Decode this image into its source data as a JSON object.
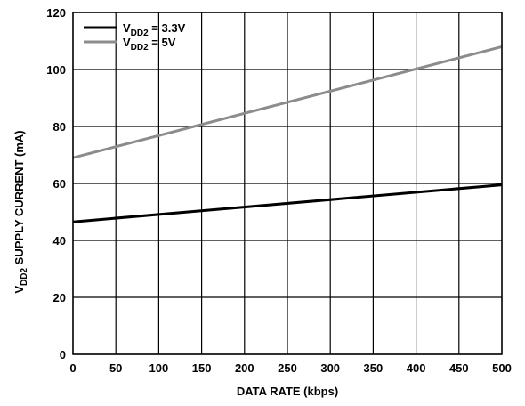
{
  "chart_data": {
    "type": "line",
    "xlabel": "DATA RATE (kbps)",
    "ylabel": {
      "pre": "V",
      "sub": "DD2",
      "post": " SUPPLY CURRENT (mA)"
    },
    "xlim": [
      0,
      500
    ],
    "ylim": [
      0,
      120
    ],
    "xticks": [
      "0",
      "50",
      "100",
      "150",
      "200",
      "250",
      "300",
      "350",
      "400",
      "450",
      "500"
    ],
    "yticks": [
      "0",
      "20",
      "40",
      "60",
      "80",
      "100",
      "120"
    ],
    "grid": true,
    "legend_position": "top-left",
    "series": [
      {
        "name": {
          "pre": "V",
          "sub": "DD2",
          "post": " = 3.3V"
        },
        "color": "#000000",
        "x": [
          0,
          500
        ],
        "y": [
          46.5,
          59.5
        ]
      },
      {
        "name": {
          "pre": "V",
          "sub": "DD2",
          "post": " = 5V"
        },
        "color": "#8c8c8c",
        "x": [
          0,
          500
        ],
        "y": [
          69,
          108
        ]
      }
    ]
  }
}
